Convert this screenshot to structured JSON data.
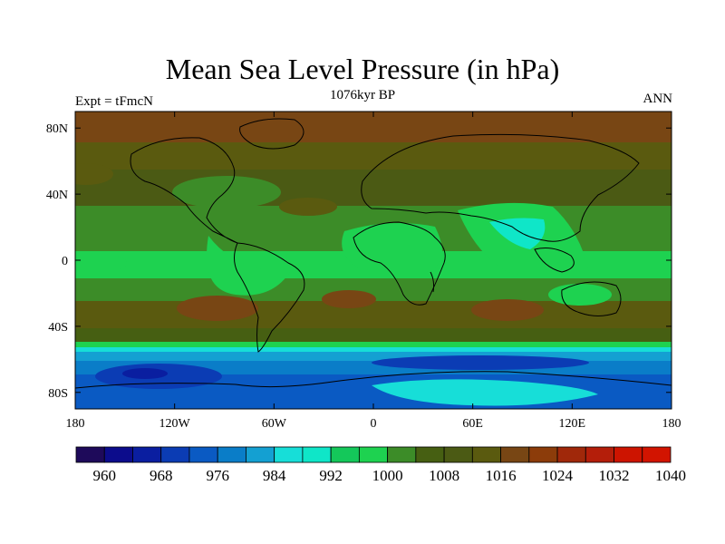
{
  "plot": {
    "title": "Mean Sea Level Pressure (in hPa)",
    "subtitle": "1076kyr BP",
    "left_note": "Expt = tFmcN",
    "right_note": "ANN",
    "lat_ticks": [
      "80N",
      "40N",
      "0",
      "40S",
      "80S"
    ],
    "lat_values": [
      80,
      40,
      0,
      -40,
      -80
    ],
    "lon_ticks": [
      "180",
      "120W",
      "60W",
      "0",
      "60E",
      "120E",
      "180"
    ],
    "lon_values": [
      -180,
      -120,
      -60,
      0,
      60,
      120,
      180
    ]
  },
  "colorbar": {
    "labels": [
      "960",
      "968",
      "976",
      "984",
      "992",
      "1000",
      "1008",
      "1016",
      "1024",
      "1032",
      "1040"
    ],
    "colors": [
      "#1e0a5a",
      "#0c0c8c",
      "#0a1ea0",
      "#0b3cb4",
      "#0a5ac3",
      "#0a7dc8",
      "#14a0d2",
      "#17ded8",
      "#0fe6c8",
      "#14c85a",
      "#1ed250",
      "#3c8c28",
      "#465f12",
      "#4b5a14",
      "#5a5a0f",
      "#784614",
      "#8c3c0a",
      "#a0280a",
      "#b41e0a",
      "#cd1400",
      "#d21400"
    ]
  }
}
